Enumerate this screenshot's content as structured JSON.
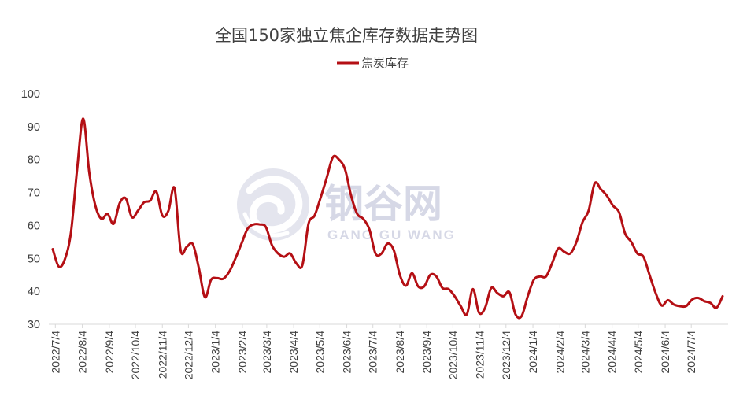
{
  "chart_data": {
    "type": "line",
    "title": "全国150家独立焦企库存数据走势图",
    "xlabel": "",
    "ylabel": "",
    "ylim": [
      30,
      100
    ],
    "yticks": [
      30,
      40,
      50,
      60,
      70,
      80,
      90,
      100
    ],
    "grid": false,
    "legend_position": "top",
    "x_tick_labels": [
      "2022/7/4",
      "2022/8/4",
      "2022/9/4",
      "2022/10/4",
      "2022/11/4",
      "2022/12/4",
      "2023/1/4",
      "2023/2/4",
      "2023/3/4",
      "2023/4/4",
      "2023/5/4",
      "2023/6/4",
      "2023/7/4",
      "2023/8/4",
      "2023/9/4",
      "2023/10/4",
      "2023/11/4",
      "2023/12/4",
      "2024/1/4",
      "2024/2/4",
      "2024/3/4",
      "2024/4/4",
      "2024/5/4",
      "2024/6/4",
      "2024/7/4"
    ],
    "series": [
      {
        "name": "焦炭库存",
        "color": "#b40f14",
        "points": [
          [
            "2022/7/1",
            52.8
          ],
          [
            "2022/7/8",
            47.5
          ],
          [
            "2022/7/15",
            49.8
          ],
          [
            "2022/7/22",
            58
          ],
          [
            "2022/7/29",
            77
          ],
          [
            "2022/8/5",
            92.4
          ],
          [
            "2022/8/12",
            76
          ],
          [
            "2022/8/19",
            66
          ],
          [
            "2022/8/26",
            62
          ],
          [
            "2022/9/2",
            63.5
          ],
          [
            "2022/9/9",
            60.5
          ],
          [
            "2022/9/16",
            66.8
          ],
          [
            "2022/9/23",
            68.2
          ],
          [
            "2022/9/30",
            62.5
          ],
          [
            "2022/10/7",
            64.5
          ],
          [
            "2022/10/14",
            67
          ],
          [
            "2022/10/21",
            67.5
          ],
          [
            "2022/10/28",
            70.3
          ],
          [
            "2022/11/4",
            63
          ],
          [
            "2022/11/11",
            64.5
          ],
          [
            "2022/11/18",
            71.3
          ],
          [
            "2022/11/25",
            52.5
          ],
          [
            "2022/12/2",
            53.5
          ],
          [
            "2022/12/9",
            54.3
          ],
          [
            "2022/12/16",
            47
          ],
          [
            "2022/12/23",
            38.2
          ],
          [
            "2022/12/30",
            43.5
          ],
          [
            "2023/1/6",
            44
          ],
          [
            "2023/1/13",
            43.8
          ],
          [
            "2023/1/20",
            46
          ],
          [
            "2023/1/27",
            50
          ],
          [
            "2023/2/3",
            54.5
          ],
          [
            "2023/2/10",
            59
          ],
          [
            "2023/2/17",
            60.3
          ],
          [
            "2023/2/24",
            60.3
          ],
          [
            "2023/3/3",
            59.5
          ],
          [
            "2023/3/10",
            54
          ],
          [
            "2023/3/17",
            51.5
          ],
          [
            "2023/3/24",
            50.5
          ],
          [
            "2023/3/31",
            51.5
          ],
          [
            "2023/4/7",
            48.5
          ],
          [
            "2023/4/14",
            48
          ],
          [
            "2023/4/21",
            60.5
          ],
          [
            "2023/4/28",
            63
          ],
          [
            "2023/5/5",
            68.5
          ],
          [
            "2023/5/12",
            74.5
          ],
          [
            "2023/5/19",
            80.7
          ],
          [
            "2023/5/26",
            80
          ],
          [
            "2023/6/2",
            77
          ],
          [
            "2023/6/9",
            69
          ],
          [
            "2023/6/16",
            63.5
          ],
          [
            "2023/6/23",
            62
          ],
          [
            "2023/6/30",
            58.8
          ],
          [
            "2023/7/7",
            51.5
          ],
          [
            "2023/7/14",
            51.5
          ],
          [
            "2023/7/21",
            54.5
          ],
          [
            "2023/7/28",
            52.5
          ],
          [
            "2023/8/4",
            45
          ],
          [
            "2023/8/11",
            41.7
          ],
          [
            "2023/8/18",
            45.5
          ],
          [
            "2023/8/25",
            41.5
          ],
          [
            "2023/9/1",
            41.5
          ],
          [
            "2023/9/8",
            45
          ],
          [
            "2023/9/15",
            44.5
          ],
          [
            "2023/9/22",
            41
          ],
          [
            "2023/9/29",
            40.7
          ],
          [
            "2023/10/6",
            38.5
          ],
          [
            "2023/10/13",
            35.5
          ],
          [
            "2023/10/20",
            33
          ],
          [
            "2023/10/27",
            40.7
          ],
          [
            "2023/11/3",
            33.5
          ],
          [
            "2023/11/10",
            35
          ],
          [
            "2023/11/17",
            41
          ],
          [
            "2023/11/24",
            39.5
          ],
          [
            "2023/12/1",
            38.5
          ],
          [
            "2023/12/8",
            39.7
          ],
          [
            "2023/12/15",
            33
          ],
          [
            "2023/12/22",
            32.5
          ],
          [
            "2023/12/29",
            38.5
          ],
          [
            "2024/1/5",
            43.5
          ],
          [
            "2024/1/12",
            44.5
          ],
          [
            "2024/1/19",
            44.5
          ],
          [
            "2024/1/26",
            48.5
          ],
          [
            "2024/2/2",
            53
          ],
          [
            "2024/2/9",
            52
          ],
          [
            "2024/2/16",
            51.5
          ],
          [
            "2024/2/23",
            55
          ],
          [
            "2024/3/1",
            61
          ],
          [
            "2024/3/8",
            64.5
          ],
          [
            "2024/3/15",
            72.8
          ],
          [
            "2024/3/22",
            71
          ],
          [
            "2024/3/29",
            69
          ],
          [
            "2024/4/5",
            66
          ],
          [
            "2024/4/12",
            64
          ],
          [
            "2024/4/19",
            57.5
          ],
          [
            "2024/4/26",
            55
          ],
          [
            "2024/5/3",
            51.5
          ],
          [
            "2024/5/10",
            50.5
          ],
          [
            "2024/5/17",
            45
          ],
          [
            "2024/5/24",
            39.5
          ],
          [
            "2024/5/31",
            35.7
          ],
          [
            "2024/6/7",
            37.3
          ],
          [
            "2024/6/14",
            36
          ],
          [
            "2024/6/21",
            35.5
          ],
          [
            "2024/6/28",
            35.5
          ],
          [
            "2024/7/5",
            37.5
          ],
          [
            "2024/7/12",
            38
          ],
          [
            "2024/7/19",
            37
          ],
          [
            "2024/7/26",
            36.5
          ],
          [
            "2024/8/2",
            35
          ],
          [
            "2024/8/9",
            38.5
          ]
        ]
      }
    ]
  },
  "watermark": {
    "text": "钢谷网",
    "subtext": "GANG GU WANG",
    "color": "#d6d8e6"
  }
}
